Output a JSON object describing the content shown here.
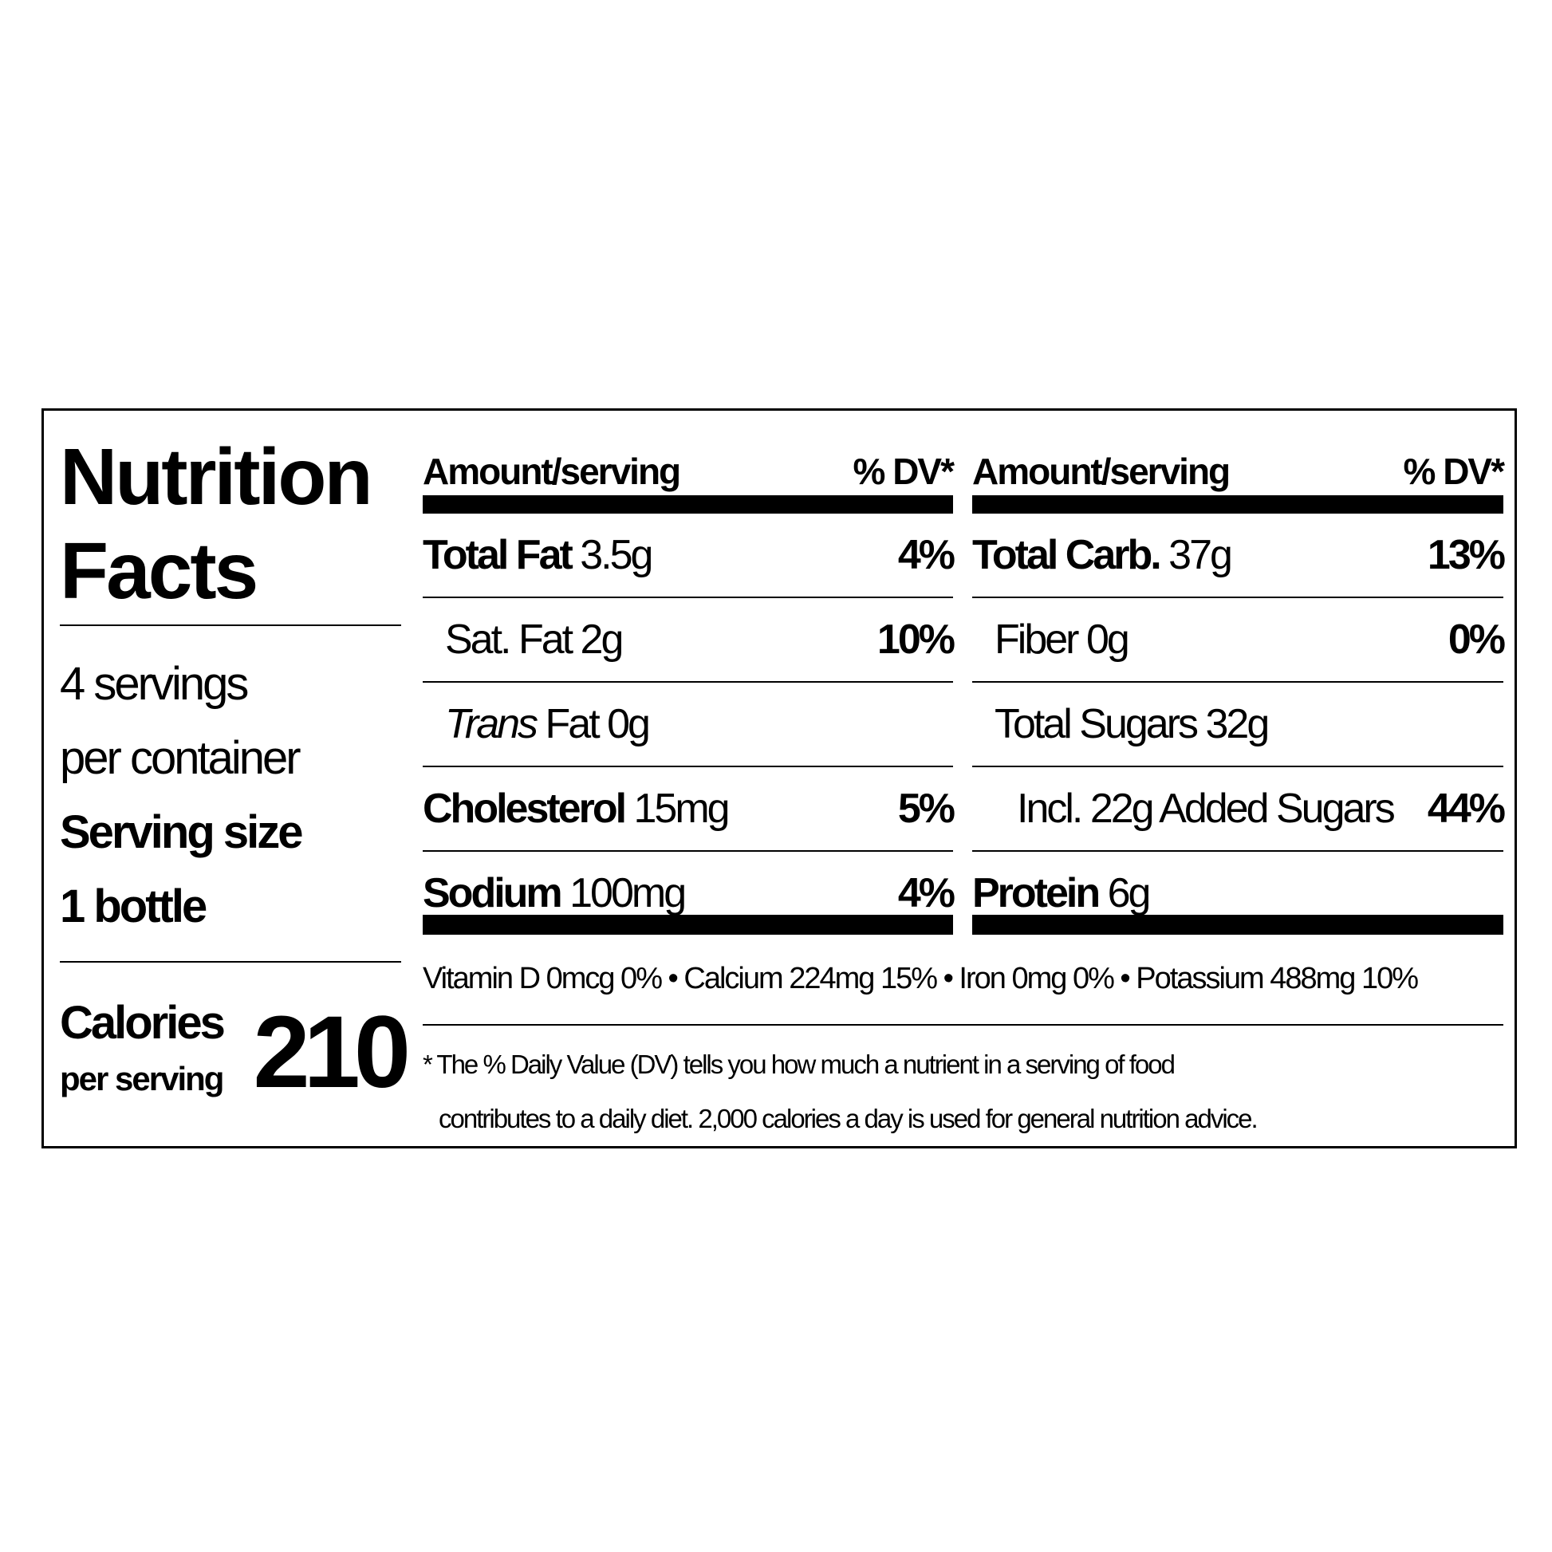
{
  "title_line1": "Nutrition",
  "title_line2": "Facts",
  "servings_line1": "4 servings",
  "servings_line2": "per container",
  "serving_size_label": "Serving size",
  "serving_size_value": "1 bottle",
  "calories_label": "Calories",
  "calories_sublabel": "per serving",
  "calories_value": "210",
  "header": {
    "amount": "Amount/serving",
    "dv": "% DV*"
  },
  "left_column": [
    {
      "name": "Total Fat",
      "amount": "3.5g",
      "dv": "4%",
      "bold": true
    },
    {
      "name": "Sat. Fat",
      "amount": "2g",
      "dv": "10%"
    },
    {
      "name_italic": "Trans",
      "name": "Fat",
      "amount": "0g",
      "dv": ""
    },
    {
      "name": "Cholesterol",
      "amount": "15mg",
      "dv": "5%",
      "bold": true
    },
    {
      "name": "Sodium",
      "amount": "100mg",
      "dv": "4%",
      "bold": true
    }
  ],
  "right_column": [
    {
      "name": "Total Carb.",
      "amount": "37g",
      "dv": "13%",
      "bold": true
    },
    {
      "name": "Fiber",
      "amount": "0g",
      "dv": "0%"
    },
    {
      "name": "Total Sugars",
      "amount": "32g",
      "dv": ""
    },
    {
      "name": "Incl. 22g Added Sugars",
      "amount": "",
      "dv": "44%"
    },
    {
      "name": "Protein",
      "amount": "6g",
      "dv": "",
      "bold": true
    }
  ],
  "vitamins": "Vitamin D 0mcg 0% • Calcium 224mg 15% • Iron 0mg 0% • Potassium 488mg 10%",
  "footnote_line1": "* The % Daily Value (DV) tells you how much a nutrient in a serving of food",
  "footnote_line2": "contributes to a daily diet. 2,000 calories a day is used for general nutrition advice."
}
